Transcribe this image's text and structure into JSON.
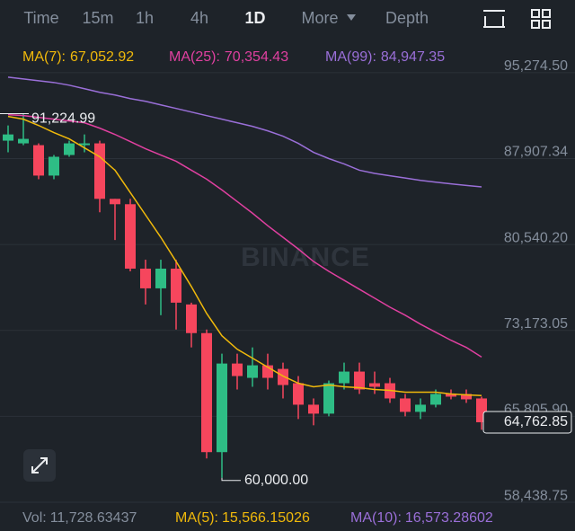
{
  "tabs": [
    {
      "label": "Time"
    },
    {
      "label": "15m"
    },
    {
      "label": "1h"
    },
    {
      "label": "4h"
    },
    {
      "label": "1D",
      "active": true
    },
    {
      "label": "More"
    },
    {
      "label": "Depth"
    }
  ],
  "chart_data": {
    "type": "candlestick",
    "watermark": "BINANCE",
    "up_color": "#2ebd85",
    "down_color": "#f6465d",
    "open": [
      88905,
      88675,
      88520,
      85912,
      87677,
      88520,
      88675,
      83917,
      83457,
      77932,
      76244,
      77932,
      74862,
      72406,
      62200,
      69797,
      68569,
      69644,
      69337,
      68109,
      66267,
      65500,
      68109,
      69107,
      68109,
      68109,
      66804,
      65653,
      66267,
      67188,
      67188,
      66804
    ],
    "high": [
      90210,
      91224.99,
      88675,
      87677,
      88905,
      89440,
      88905,
      83917,
      83917,
      78699,
      78699,
      78699,
      75016,
      72713,
      70641,
      70641,
      71179,
      70641,
      69874,
      68723,
      66804,
      68339,
      69874,
      69874,
      69107,
      68569,
      67188,
      66804,
      67572,
      67572,
      67572,
      66958
    ],
    "low": [
      87907,
      88520,
      85600,
      85600,
      87524,
      87907,
      82766,
      80387,
      77700,
      74862,
      73941,
      72713,
      71179,
      61662,
      60000,
      67572,
      67802,
      67572,
      66804,
      65039,
      64502,
      65270,
      67572,
      67188,
      67188,
      66421,
      65270,
      65039,
      66037,
      66727,
      66421,
      64118
    ],
    "close": [
      89440,
      89060,
      85912,
      87524,
      88675,
      88675,
      83917,
      83457,
      77932,
      76244,
      77932,
      75016,
      72406,
      62200,
      69797,
      68723,
      69644,
      68569,
      67955,
      66267,
      65500,
      68109,
      69107,
      67572,
      67802,
      66804,
      65653,
      66267,
      67188,
      66958,
      66727,
      64762.85
    ],
    "series": [
      {
        "name": "MA(7):",
        "color": "#f0b90b",
        "last_label": "67,052.92",
        "values": [
          90977,
          90747,
          90210,
          89600,
          89060,
          88290,
          87524,
          86373,
          84454,
          82536,
          80617,
          78545,
          76397,
          74095,
          72176,
          71024,
          70257,
          69490,
          68723,
          68109,
          67802,
          67955,
          67802,
          67725,
          67572,
          67495,
          67341,
          67341,
          67341,
          67188,
          67111,
          67052.92
        ]
      },
      {
        "name": "MA(25):",
        "color": "#e040a0",
        "last_label": "70,354.43",
        "values": [
          91131,
          91054,
          90900,
          90747,
          90593,
          90440,
          89979,
          89440,
          88828,
          88214,
          87677,
          87140,
          86373,
          85605,
          84684,
          83686,
          82688,
          81614,
          80617,
          79619,
          78545,
          77700,
          76935,
          76167,
          75400,
          74630,
          73940,
          73173,
          72480,
          71790,
          71180,
          70354.43
        ]
      },
      {
        "name": "MA(99):",
        "color": "#9a6fd8",
        "last_label": "84,947.35",
        "values": [
          94354,
          94200,
          94047,
          93893,
          93663,
          93356,
          93049,
          92819,
          92512,
          92282,
          91975,
          91668,
          91361,
          91054,
          90747,
          90440,
          90133,
          89749,
          89289,
          88675,
          87907,
          87370,
          86910,
          86373,
          86100,
          85900,
          85700,
          85500,
          85350,
          85200,
          85070,
          84947.35
        ]
      }
    ],
    "ylim": [
      57441,
      97500
    ],
    "yticks": [
      {
        "value": 58438.75,
        "label": "58,438.75"
      },
      {
        "value": 65805.9,
        "label": "65,805.90"
      },
      {
        "value": 73173.05,
        "label": "73,173.05"
      },
      {
        "value": 80540.2,
        "label": "80,540.20"
      },
      {
        "value": 87907.34,
        "label": "87,907.34"
      },
      {
        "value": 95274.5,
        "label": "95,274.50"
      }
    ],
    "high_label": "91,224.99",
    "low_label": "60,000.00",
    "last_price_label": "64,762.85"
  },
  "volume_footer": {
    "label": "Vol:",
    "value": "11,728.63437",
    "ma": [
      {
        "name": "MA(5):",
        "value": "15,566.15026",
        "color": "#f0b90b"
      },
      {
        "name": "MA(10):",
        "value": "16,573.28602",
        "color": "#9a6fd8"
      }
    ]
  }
}
